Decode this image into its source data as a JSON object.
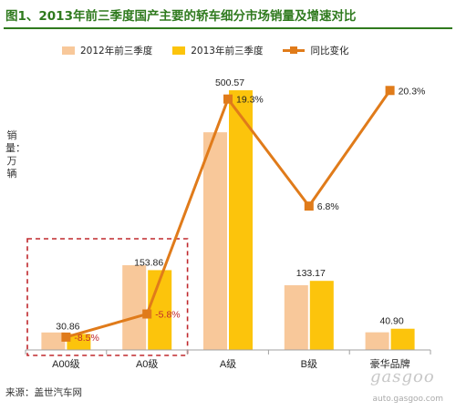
{
  "title": "图1、2013年前三季度国产主要的轿车细分市场销量及增速对比",
  "ylabel": "销量：万辆",
  "source": "来源：盖世汽车网",
  "watermark": {
    "logo_text": "gasgoo",
    "url": "auto.gasgoo.com"
  },
  "colors": {
    "s2012": "#f8c89a",
    "s2013": "#fcc40c",
    "growth": "#e07b1a",
    "box": "#c0282d",
    "label": "#c0282d",
    "axis": "#a0a0a0"
  },
  "chart_data": {
    "type": "bar",
    "title": "图1、2013年前三季度国产主要的轿车细分市场销量及增速对比",
    "ylabel": "销量：万辆",
    "categories": [
      "A00级",
      "A0级",
      "A级",
      "B级",
      "豪华品牌"
    ],
    "series": [
      {
        "name": "2012年前三季度",
        "type": "bar",
        "values": [
          33.7,
          163.3,
          419.6,
          124.7,
          34.0
        ]
      },
      {
        "name": "2013年前三季度",
        "type": "bar",
        "values": [
          30.86,
          153.86,
          500.57,
          133.17,
          40.9
        ],
        "data_labels": [
          "30.86",
          "153.86",
          "500.57",
          "133.17",
          "40.90"
        ]
      },
      {
        "name": "同比变化",
        "type": "line",
        "values": [
          -8.5,
          -5.8,
          19.3,
          6.8,
          20.3
        ],
        "unit": "%",
        "data_labels": [
          "-8.5%",
          "-5.8%",
          "19.3%",
          "6.8%",
          "20.3%"
        ]
      }
    ],
    "ylim": [
      0,
      520
    ],
    "y2lim": [
      -10,
      21.5
    ],
    "grid": false,
    "legend_position": "top",
    "highlighted_categories": [
      "A00级",
      "A0级"
    ]
  }
}
